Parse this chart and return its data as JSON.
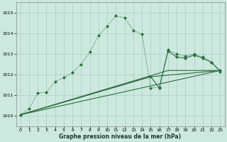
{
  "xlabel": "Graphe pression niveau de la mer (hPa)",
  "bg_color": "#cce8df",
  "grid_color": "#aacfc6",
  "line_color": "#2d6e3e",
  "xlim": [
    -0.5,
    23.5
  ],
  "ylim": [
    1009.5,
    1015.5
  ],
  "xticks": [
    0,
    1,
    2,
    3,
    4,
    5,
    6,
    7,
    8,
    9,
    10,
    11,
    12,
    13,
    14,
    15,
    16,
    17,
    18,
    19,
    20,
    21,
    22,
    23
  ],
  "yticks": [
    1010,
    1011,
    1012,
    1013,
    1014,
    1015
  ],
  "main_x": [
    0,
    1,
    2,
    3,
    4,
    5,
    6,
    7,
    8,
    9,
    10,
    11,
    12,
    13,
    14,
    15,
    16,
    17,
    18,
    19,
    20,
    21,
    22,
    23
  ],
  "main_y": [
    1010.05,
    1010.35,
    1011.1,
    1011.15,
    1011.65,
    1011.85,
    1012.1,
    1012.5,
    1013.1,
    1013.9,
    1014.35,
    1014.85,
    1014.75,
    1014.15,
    1013.95,
    1011.35,
    1011.4,
    1013.2,
    1013.0,
    1012.9,
    1013.0,
    1012.85,
    1012.6,
    1012.2
  ],
  "line2_x": [
    0,
    15,
    16,
    17,
    18,
    19,
    20,
    21,
    22,
    23
  ],
  "line2_y": [
    1010.05,
    1011.9,
    1011.35,
    1013.15,
    1012.85,
    1012.8,
    1012.95,
    1012.8,
    1012.6,
    1012.15
  ],
  "line3_x": [
    0,
    23
  ],
  "line3_y": [
    1010.05,
    1012.2
  ],
  "line4_x": [
    0,
    23
  ],
  "line4_y": [
    1010.05,
    1012.2
  ],
  "line5_x": [
    0,
    15,
    23
  ],
  "line5_y": [
    1010.05,
    1011.9,
    1012.2
  ]
}
